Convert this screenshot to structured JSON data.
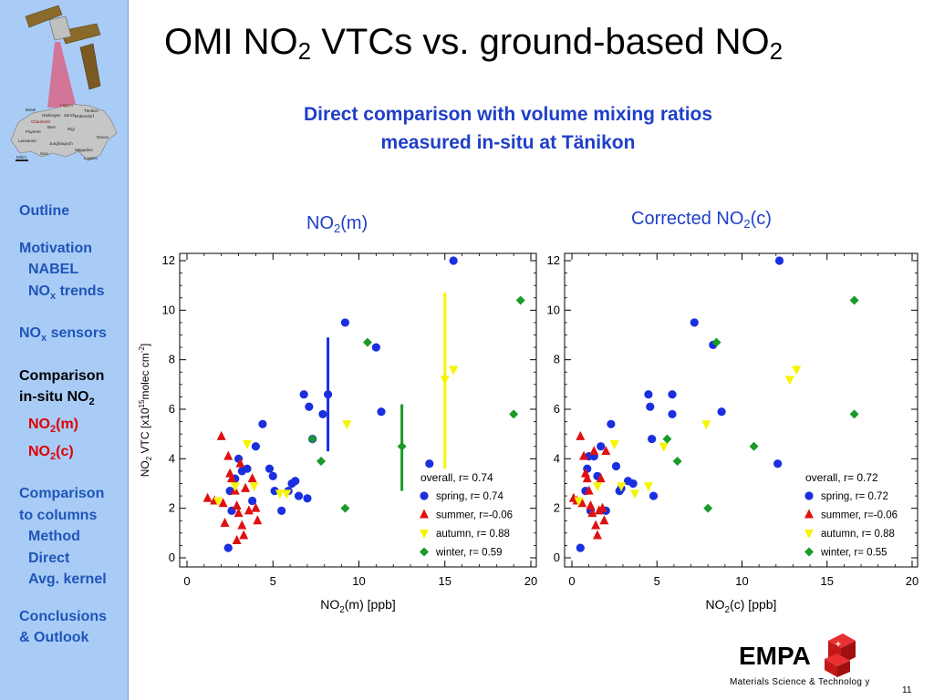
{
  "slide": {
    "title_main": "OMI NO",
    "title_sub": "2",
    "title_mid": " VTCs vs. ground-based NO",
    "title_end_sub": "2",
    "subtitle_line1": "Direct comparison with volume mixing ratios",
    "subtitle_line2": "measured in-situ at Tänikon",
    "footer": "Materials Science & Technolog y",
    "page_number": "11",
    "logo_text": "EMPA"
  },
  "map_labels": [
    "Lägern",
    "Tänikon",
    "Basel",
    "Dübendorf",
    "Härkingen",
    "Zürich",
    "Chaumont",
    "Payerne",
    "Bern",
    "Rigi",
    "Davos",
    "Lausanne",
    "Jungfraujoch",
    "Magadino",
    "Sion",
    "Lugano",
    "50km"
  ],
  "nav": [
    {
      "label": "Outline",
      "indent": false,
      "style": "normal",
      "gap_before": false
    },
    {
      "label": "Motivation",
      "indent": false,
      "style": "normal",
      "gap_before": true
    },
    {
      "label": "NABEL",
      "indent": true,
      "style": "normal",
      "gap_before": false
    },
    {
      "label": "NOx trends",
      "indent": true,
      "style": "normal",
      "gap_before": false
    },
    {
      "label": "NOx sensors",
      "indent": false,
      "style": "normal",
      "gap_before": true
    },
    {
      "label": "Comparison",
      "indent": false,
      "style": "current",
      "gap_before": true
    },
    {
      "label": "in-situ NO2",
      "indent": false,
      "style": "current",
      "gap_before": false
    },
    {
      "label": "NO2(m)",
      "indent": true,
      "style": "sub-current",
      "gap_before": false
    },
    {
      "label": "NO2(c)",
      "indent": true,
      "style": "sub-current",
      "gap_before": false
    },
    {
      "label": "Comparison",
      "indent": false,
      "style": "normal",
      "gap_before": true
    },
    {
      "label": "to columns",
      "indent": false,
      "style": "normal",
      "gap_before": false
    },
    {
      "label": "Method",
      "indent": true,
      "style": "normal",
      "gap_before": false
    },
    {
      "label": "Direct",
      "indent": true,
      "style": "normal",
      "gap_before": false
    },
    {
      "label": "Avg. kernel",
      "indent": true,
      "style": "normal",
      "gap_before": false
    },
    {
      "label": "Conclusions",
      "indent": false,
      "style": "normal",
      "gap_before": true
    },
    {
      "label": "& Outlook",
      "indent": false,
      "style": "normal",
      "gap_before": false
    }
  ],
  "colors": {
    "spring": "#1a2fe0",
    "summer": "#e01010",
    "autumn": "#f5f500",
    "winter": "#1a9a2a",
    "sidebar_bg": "#a9ccf7",
    "nav_text": "#1f55b8",
    "title_blue": "#1f3fc8"
  },
  "chart_data": [
    {
      "type": "scatter",
      "title": "NO2(m)",
      "title_parts": {
        "pre": "NO",
        "sub": "2",
        "post": "(m)"
      },
      "xlabel": "NO2(m) [ppb]",
      "xlabel_parts": {
        "pre": "NO",
        "sub": "2",
        "post": "(m) [ppb]"
      },
      "ylabel": "NO2 VTC [x10^15 molec cm^-2]",
      "xlim": [
        0,
        20
      ],
      "ylim": [
        0,
        12
      ],
      "xticks": [
        0,
        5,
        10,
        15,
        20
      ],
      "yticks": [
        0,
        2,
        4,
        6,
        8,
        10,
        12
      ],
      "legend_position": "bottom-right",
      "legend_title": "overall, r= 0.74",
      "series": [
        {
          "name": "spring",
          "label": "spring, r= 0.74",
          "marker": "circle",
          "color": "#1a2fe0",
          "x": [
            2.5,
            2.8,
            3.0,
            3.2,
            3.5,
            3.8,
            4.0,
            4.4,
            4.8,
            5.0,
            5.1,
            5.5,
            5.9,
            6.1,
            6.3,
            6.5,
            6.8,
            7.0,
            7.1,
            7.3,
            7.9,
            8.2,
            9.2,
            11.0,
            11.3,
            14.1,
            15.5,
            2.4,
            2.6
          ],
          "y": [
            2.7,
            3.2,
            4.0,
            3.5,
            3.6,
            2.3,
            4.5,
            5.4,
            3.6,
            3.3,
            2.7,
            1.9,
            2.7,
            3.0,
            3.1,
            2.5,
            6.6,
            2.4,
            6.1,
            4.8,
            5.8,
            6.6,
            9.5,
            8.5,
            5.9,
            3.8,
            12.0,
            0.4,
            1.9
          ]
        },
        {
          "name": "summer",
          "label": "summer, r=-0.06",
          "marker": "triangle-up",
          "color": "#e01010",
          "x": [
            1.2,
            1.6,
            2.0,
            2.1,
            2.4,
            2.5,
            2.6,
            2.8,
            2.9,
            3.0,
            3.1,
            3.2,
            3.3,
            3.6,
            3.8,
            4.0,
            4.1,
            2.2,
            2.9,
            3.4
          ],
          "y": [
            2.4,
            2.3,
            4.9,
            2.2,
            4.1,
            3.4,
            3.2,
            2.7,
            2.1,
            1.8,
            3.8,
            1.3,
            0.9,
            1.9,
            3.2,
            2.0,
            1.5,
            1.4,
            0.7,
            2.8
          ],
          "error_bar": null
        },
        {
          "name": "autumn",
          "label": "autumn, r= 0.88",
          "marker": "triangle-down",
          "color": "#f5f500",
          "x": [
            1.8,
            2.8,
            3.5,
            3.9,
            5.4,
            5.8,
            9.3,
            15.0,
            15.5
          ],
          "y": [
            2.3,
            2.9,
            4.6,
            2.9,
            2.6,
            2.6,
            5.4,
            7.2,
            7.6
          ],
          "error_bar": {
            "x": 15.0,
            "y_low": 3.6,
            "y_high": 10.7
          }
        },
        {
          "name": "winter",
          "label": "winter, r= 0.59",
          "marker": "diamond",
          "color": "#1a9a2a",
          "x": [
            7.3,
            7.8,
            9.2,
            10.5,
            12.5,
            19.0,
            19.4
          ],
          "y": [
            4.8,
            3.9,
            2.0,
            8.7,
            4.5,
            5.8,
            10.4
          ],
          "error_bar": {
            "x": 12.5,
            "y_low": 2.7,
            "y_high": 6.2
          }
        },
        {
          "name": "spring_err",
          "label": "",
          "marker": "none",
          "color": "#1a2fe0",
          "x": [],
          "y": [],
          "error_bar": {
            "x": 8.2,
            "y_low": 4.3,
            "y_high": 8.9
          }
        }
      ]
    },
    {
      "type": "scatter",
      "title": "Corrected NO2(c)",
      "title_parts": {
        "pre": "Corrected NO",
        "sub": "2",
        "post": "(c)"
      },
      "xlabel": "NO2(c) [ppb]",
      "xlabel_parts": {
        "pre": "NO",
        "sub": "2",
        "post": "(c) [ppb]"
      },
      "ylabel": "",
      "xlim": [
        0,
        20
      ],
      "ylim": [
        0,
        12
      ],
      "xticks": [
        0,
        5,
        10,
        15,
        20
      ],
      "yticks": [
        0,
        2,
        4,
        6,
        8,
        10,
        12
      ],
      "legend_position": "bottom-right",
      "legend_title": "overall, r= 0.72",
      "series": [
        {
          "name": "spring",
          "label": "spring, r= 0.72",
          "marker": "circle",
          "color": "#1a2fe0",
          "x": [
            0.9,
            1.0,
            1.1,
            1.3,
            1.5,
            1.7,
            2.0,
            2.3,
            2.6,
            2.8,
            2.9,
            3.3,
            3.6,
            4.5,
            4.6,
            4.7,
            4.8,
            5.9,
            5.9,
            7.2,
            8.3,
            8.8,
            12.1,
            12.2,
            0.5,
            0.8
          ],
          "y": [
            3.6,
            4.1,
            1.9,
            4.1,
            3.3,
            4.5,
            1.9,
            5.4,
            3.7,
            2.7,
            2.8,
            3.1,
            3.0,
            6.6,
            6.1,
            4.8,
            2.5,
            6.6,
            5.8,
            9.5,
            8.6,
            5.9,
            3.8,
            12.0,
            0.4,
            2.7
          ]
        },
        {
          "name": "summer",
          "label": "summer, r=-0.06",
          "marker": "triangle-up",
          "color": "#e01010",
          "x": [
            0.1,
            0.3,
            0.5,
            0.6,
            0.7,
            0.8,
            0.9,
            1.0,
            1.1,
            1.2,
            1.3,
            1.4,
            1.5,
            1.6,
            1.7,
            1.8,
            1.9,
            2.0
          ],
          "y": [
            2.4,
            2.3,
            4.9,
            2.2,
            4.1,
            3.4,
            3.2,
            2.7,
            2.1,
            1.8,
            4.3,
            1.3,
            0.9,
            1.9,
            3.2,
            2.0,
            1.5,
            4.3
          ]
        },
        {
          "name": "autumn",
          "label": "autumn, r= 0.88",
          "marker": "triangle-down",
          "color": "#f5f500",
          "x": [
            0.4,
            1.5,
            2.5,
            2.9,
            3.7,
            4.5,
            5.4,
            7.9,
            12.8,
            13.2
          ],
          "y": [
            2.3,
            2.9,
            4.6,
            2.9,
            2.6,
            2.9,
            4.5,
            5.4,
            7.2,
            7.6
          ]
        },
        {
          "name": "winter",
          "label": "winter, r= 0.55",
          "marker": "diamond",
          "color": "#1a9a2a",
          "x": [
            5.6,
            6.2,
            8.0,
            8.5,
            10.7,
            16.6,
            16.6
          ],
          "y": [
            4.8,
            3.9,
            2.0,
            8.7,
            4.5,
            5.8,
            10.4
          ]
        }
      ]
    }
  ]
}
